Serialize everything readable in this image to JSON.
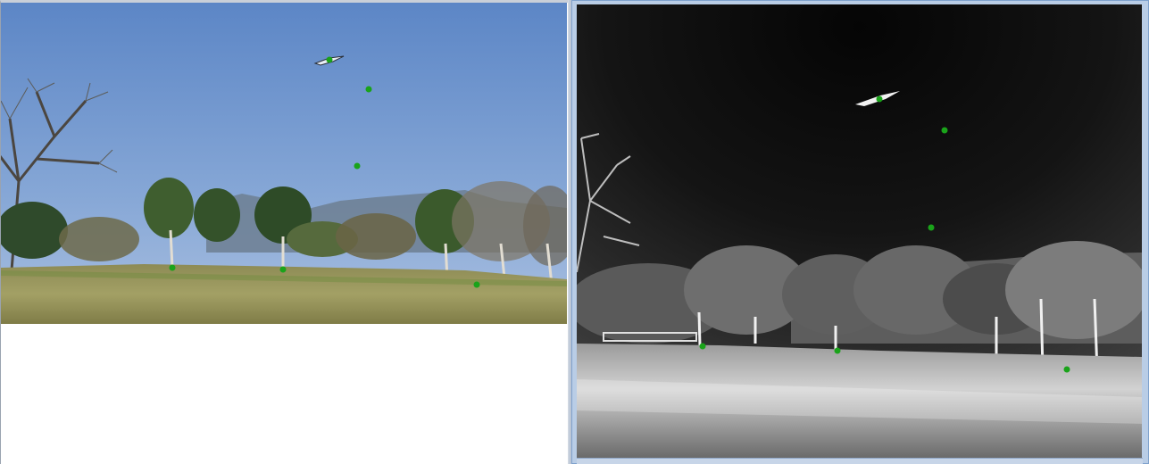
{
  "window": {
    "accent": "#6f96c8",
    "marker_color": "#1aa31a"
  },
  "panes": [
    {
      "name": "rgb-view",
      "kind": "visible-light image"
    },
    {
      "name": "thermal-view",
      "kind": "infrared image"
    }
  ],
  "markers": {
    "rgb": [
      {
        "label": "drone-1-marker"
      },
      {
        "label": "drone-2-marker"
      },
      {
        "label": "drone-3-marker"
      },
      {
        "label": "ground-marker-1"
      },
      {
        "label": "ground-marker-2"
      },
      {
        "label": "ground-marker-3"
      }
    ],
    "thermal": [
      {
        "label": "drone-1-marker"
      },
      {
        "label": "drone-2-marker"
      },
      {
        "label": "drone-3-marker"
      },
      {
        "label": "ground-marker-1"
      },
      {
        "label": "ground-marker-2"
      },
      {
        "label": "ground-marker-3"
      }
    ]
  }
}
